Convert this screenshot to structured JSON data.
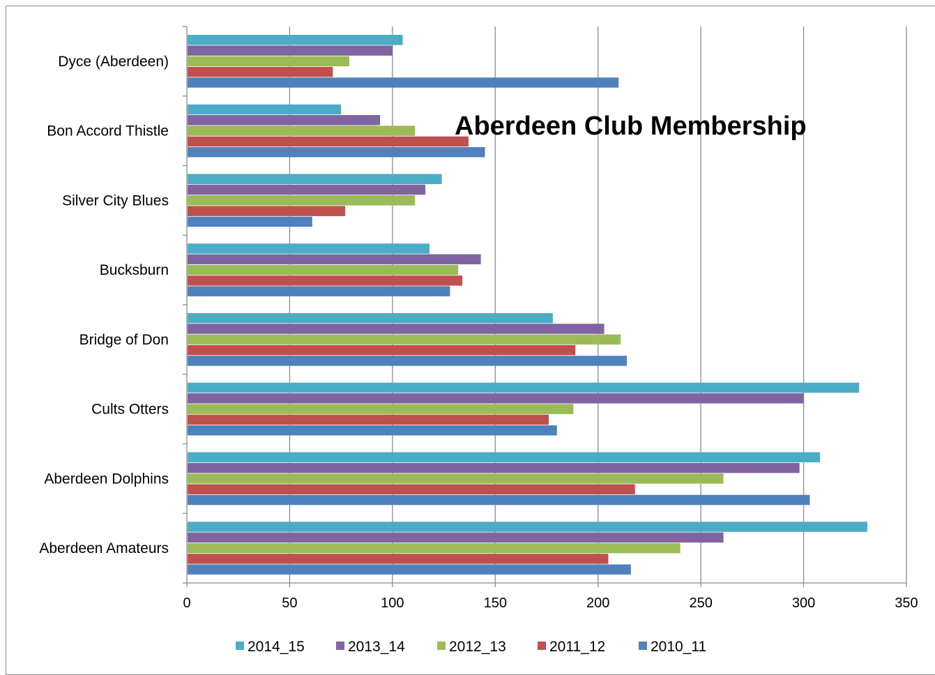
{
  "chart_data": {
    "type": "bar",
    "orientation": "horizontal",
    "title": "Aberdeen Club Membership",
    "categories": [
      "Aberdeen Amateurs",
      "Aberdeen Dolphins",
      "Cults Otters",
      "Bridge of Don",
      "Bucksburn",
      "Silver City Blues",
      "Bon Accord Thistle",
      "Dyce (Aberdeen)"
    ],
    "series": [
      {
        "name": "2010_11",
        "color": "#4f81bd",
        "values": [
          216,
          303,
          180,
          214,
          128,
          61,
          145,
          210
        ]
      },
      {
        "name": "2011_12",
        "color": "#c0504d",
        "values": [
          205,
          218,
          176,
          189,
          134,
          77,
          137,
          71
        ]
      },
      {
        "name": "2012_13",
        "color": "#9bbb59",
        "values": [
          240,
          261,
          188,
          211,
          132,
          111,
          111,
          79
        ]
      },
      {
        "name": "2013_14",
        "color": "#8064a2",
        "values": [
          261,
          298,
          300,
          203,
          143,
          116,
          94,
          100
        ]
      },
      {
        "name": "2014_15",
        "color": "#4bacc6",
        "values": [
          331,
          308,
          327,
          178,
          118,
          124,
          75,
          105
        ]
      }
    ],
    "x_ticks": [
      "0",
      "50",
      "100",
      "150",
      "200",
      "250",
      "300",
      "350"
    ],
    "xlim": [
      0,
      350
    ],
    "grid": true,
    "legend_position": "bottom",
    "legend_order": [
      "2014_15",
      "2013_14",
      "2012_13",
      "2011_12",
      "2010_11"
    ]
  }
}
